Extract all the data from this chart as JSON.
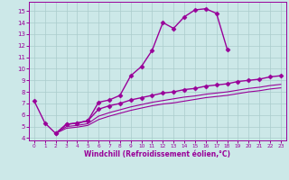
{
  "xlabel": "Windchill (Refroidissement éolien,°C)",
  "background_color": "#cce8e8",
  "grid_color": "#aacccc",
  "line_color": "#990099",
  "xlim": [
    -0.5,
    23.5
  ],
  "ylim": [
    3.8,
    15.8
  ],
  "xticks": [
    0,
    1,
    2,
    3,
    4,
    5,
    6,
    7,
    8,
    9,
    10,
    11,
    12,
    13,
    14,
    15,
    16,
    17,
    18,
    19,
    20,
    21,
    22,
    23
  ],
  "yticks": [
    4,
    5,
    6,
    7,
    8,
    9,
    10,
    11,
    12,
    13,
    14,
    15
  ],
  "series": [
    {
      "x": [
        0,
        1,
        2,
        3,
        4,
        5,
        6,
        7,
        8,
        9,
        10,
        11,
        12,
        13,
        14,
        15,
        16,
        17,
        18
      ],
      "y": [
        7.2,
        5.3,
        4.4,
        5.2,
        5.3,
        5.5,
        7.1,
        7.3,
        7.7,
        9.4,
        10.2,
        11.6,
        14.0,
        13.5,
        14.5,
        15.1,
        15.2,
        14.8,
        11.7
      ],
      "marker": "D",
      "markersize": 2.5,
      "linewidth": 1.0
    },
    {
      "x": [
        2,
        3,
        4,
        5,
        6,
        7,
        8,
        9,
        10,
        11,
        12,
        13,
        14,
        15,
        16,
        17,
        18,
        19,
        20,
        21,
        22,
        23
      ],
      "y": [
        4.4,
        5.2,
        5.3,
        5.5,
        6.5,
        6.8,
        7.0,
        7.3,
        7.5,
        7.7,
        7.9,
        8.0,
        8.2,
        8.3,
        8.5,
        8.6,
        8.7,
        8.9,
        9.0,
        9.1,
        9.3,
        9.4
      ],
      "marker": "D",
      "markersize": 2.5,
      "linewidth": 1.0
    },
    {
      "x": [
        2,
        3,
        4,
        5,
        6,
        7,
        8,
        9,
        10,
        11,
        12,
        13,
        14,
        15,
        16,
        17,
        18,
        19,
        20,
        21,
        22,
        23
      ],
      "y": [
        4.4,
        5.0,
        5.1,
        5.25,
        5.9,
        6.2,
        6.45,
        6.7,
        6.9,
        7.1,
        7.25,
        7.4,
        7.55,
        7.65,
        7.8,
        7.9,
        8.0,
        8.15,
        8.3,
        8.4,
        8.55,
        8.65
      ],
      "marker": null,
      "markersize": 0,
      "linewidth": 0.8
    },
    {
      "x": [
        2,
        3,
        4,
        5,
        6,
        7,
        8,
        9,
        10,
        11,
        12,
        13,
        14,
        15,
        16,
        17,
        18,
        19,
        20,
        21,
        22,
        23
      ],
      "y": [
        4.4,
        4.85,
        4.95,
        5.1,
        5.6,
        5.9,
        6.15,
        6.4,
        6.6,
        6.8,
        6.95,
        7.05,
        7.2,
        7.35,
        7.5,
        7.6,
        7.7,
        7.85,
        8.0,
        8.1,
        8.25,
        8.35
      ],
      "marker": null,
      "markersize": 0,
      "linewidth": 0.8
    }
  ]
}
